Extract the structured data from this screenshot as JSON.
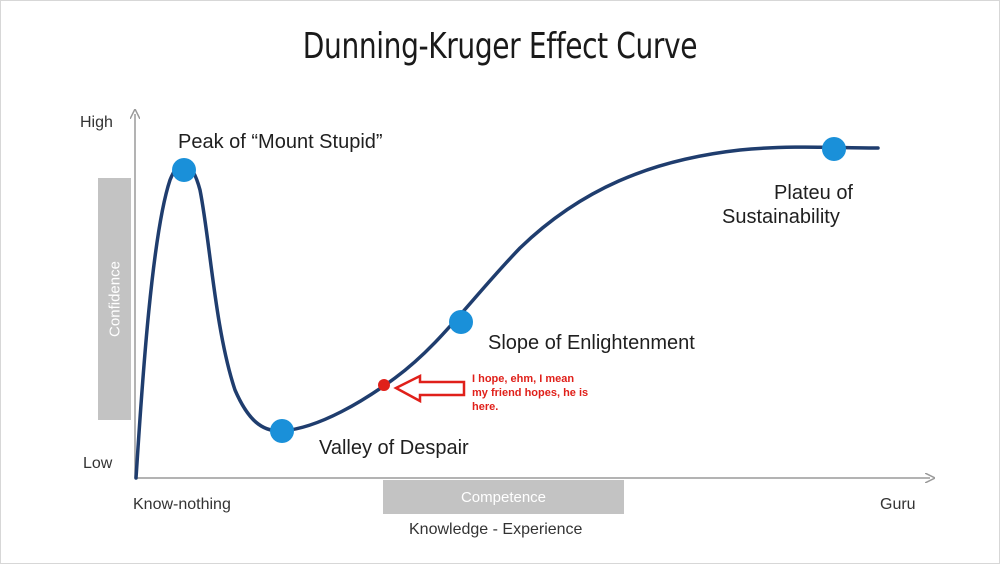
{
  "title": "Dunning-Kruger Effect Curve",
  "axes": {
    "y_high": "High",
    "y_low": "Low",
    "y_bar": "Confidence",
    "x_start": "Know-nothing",
    "x_end": "Guru",
    "x_bar": "Competence",
    "x_caption": "Knowledge - Experience"
  },
  "stages": [
    {
      "id": "peak",
      "label": "Peak of “Mount Stupid”"
    },
    {
      "id": "valley",
      "label": "Valley of Despair"
    },
    {
      "id": "slope",
      "label": "Slope of Enlightenment"
    },
    {
      "id": "plateau",
      "label_line1": "Plateu of",
      "label_line2": "Sustainability"
    }
  ],
  "annotation": {
    "line1": "I hope, ehm, I mean",
    "line2": "my friend hopes, he is",
    "line3": "here."
  },
  "colors": {
    "curve": "#1f3d6e",
    "marker": "#1a90d9",
    "highlight": "#e0201a",
    "bar": "#c3c3c3"
  }
}
